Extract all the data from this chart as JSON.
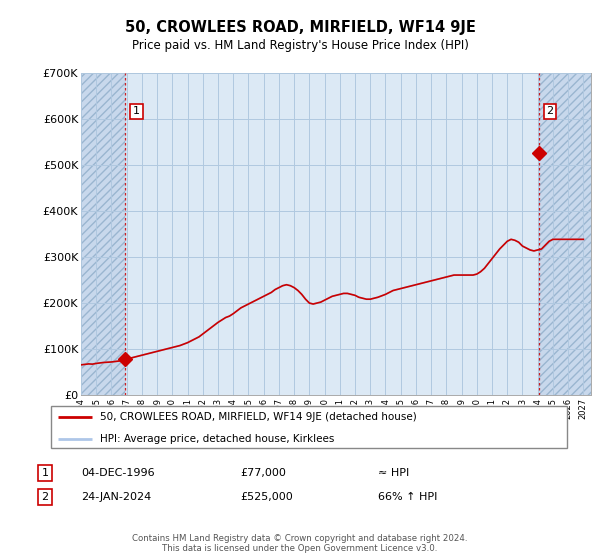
{
  "title": "50, CROWLEES ROAD, MIRFIELD, WF14 9JE",
  "subtitle": "Price paid vs. HM Land Registry's House Price Index (HPI)",
  "ylim": [
    0,
    700000
  ],
  "yticks": [
    0,
    100000,
    200000,
    300000,
    400000,
    500000,
    600000,
    700000
  ],
  "ytick_labels": [
    "£0",
    "£100K",
    "£200K",
    "£300K",
    "£400K",
    "£500K",
    "£600K",
    "£700K"
  ],
  "hpi_color": "#aec6e8",
  "price_color": "#cc0000",
  "plot_bg_color": "#dce9f5",
  "grid_color": "#b0c8e0",
  "hatch_bg_color": "#c8d8ec",
  "legend_line1": "50, CROWLEES ROAD, MIRFIELD, WF14 9JE (detached house)",
  "legend_line2": "HPI: Average price, detached house, Kirklees",
  "annotation1_label": "1",
  "annotation1_date": "04-DEC-1996",
  "annotation1_price": "£77,000",
  "annotation1_hpi": "≈ HPI",
  "annotation2_label": "2",
  "annotation2_date": "24-JAN-2024",
  "annotation2_price": "£525,000",
  "annotation2_hpi": "66% ↑ HPI",
  "footer": "Contains HM Land Registry data © Crown copyright and database right 2024.\nThis data is licensed under the Open Government Licence v3.0.",
  "sale1_year": 1996.92,
  "sale1_price": 77000,
  "sale2_year": 2024.07,
  "sale2_price": 525000,
  "xlim_left": 1994.0,
  "xlim_right": 2027.5,
  "hpi_x": [
    1994.0,
    1994.25,
    1994.5,
    1994.75,
    1995.0,
    1995.25,
    1995.5,
    1995.75,
    1996.0,
    1996.25,
    1996.5,
    1996.75,
    1997.0,
    1997.25,
    1997.5,
    1997.75,
    1998.0,
    1998.25,
    1998.5,
    1998.75,
    1999.0,
    1999.25,
    1999.5,
    1999.75,
    2000.0,
    2000.25,
    2000.5,
    2000.75,
    2001.0,
    2001.25,
    2001.5,
    2001.75,
    2002.0,
    2002.25,
    2002.5,
    2002.75,
    2003.0,
    2003.25,
    2003.5,
    2003.75,
    2004.0,
    2004.25,
    2004.5,
    2004.75,
    2005.0,
    2005.25,
    2005.5,
    2005.75,
    2006.0,
    2006.25,
    2006.5,
    2006.75,
    2007.0,
    2007.25,
    2007.5,
    2007.75,
    2008.0,
    2008.25,
    2008.5,
    2008.75,
    2009.0,
    2009.25,
    2009.5,
    2009.75,
    2010.0,
    2010.25,
    2010.5,
    2010.75,
    2011.0,
    2011.25,
    2011.5,
    2011.75,
    2012.0,
    2012.25,
    2012.5,
    2012.75,
    2013.0,
    2013.25,
    2013.5,
    2013.75,
    2014.0,
    2014.25,
    2014.5,
    2014.75,
    2015.0,
    2015.25,
    2015.5,
    2015.75,
    2016.0,
    2016.25,
    2016.5,
    2016.75,
    2017.0,
    2017.25,
    2017.5,
    2017.75,
    2018.0,
    2018.25,
    2018.5,
    2018.75,
    2019.0,
    2019.25,
    2019.5,
    2019.75,
    2020.0,
    2020.25,
    2020.5,
    2020.75,
    2021.0,
    2021.25,
    2021.5,
    2021.75,
    2022.0,
    2022.25,
    2022.5,
    2022.75,
    2023.0,
    2023.25,
    2023.5,
    2023.75,
    2024.0,
    2024.25,
    2024.5,
    2024.75,
    2025.0,
    2025.25,
    2025.5,
    2025.75,
    2026.0,
    2026.5,
    2027.0
  ],
  "hpi_y": [
    62000,
    63000,
    64000,
    63500,
    65000,
    66000,
    67000,
    67500,
    68000,
    69000,
    70000,
    72000,
    74000,
    76000,
    78000,
    80000,
    82000,
    84000,
    86000,
    88000,
    90000,
    92000,
    94000,
    96000,
    98000,
    100000,
    102000,
    105000,
    108000,
    112000,
    116000,
    120000,
    126000,
    132000,
    138000,
    144000,
    150000,
    155000,
    160000,
    163000,
    168000,
    174000,
    180000,
    184000,
    188000,
    192000,
    196000,
    200000,
    204000,
    208000,
    212000,
    218000,
    222000,
    226000,
    228000,
    226000,
    222000,
    216000,
    208000,
    198000,
    190000,
    188000,
    190000,
    192000,
    196000,
    200000,
    204000,
    206000,
    208000,
    210000,
    210000,
    208000,
    206000,
    202000,
    200000,
    198000,
    198000,
    200000,
    202000,
    205000,
    208000,
    212000,
    216000,
    218000,
    220000,
    222000,
    224000,
    226000,
    228000,
    230000,
    232000,
    234000,
    236000,
    238000,
    240000,
    242000,
    244000,
    246000,
    248000,
    248000,
    248000,
    248000,
    248000,
    248000,
    250000,
    255000,
    262000,
    272000,
    282000,
    292000,
    302000,
    310000,
    318000,
    322000,
    320000,
    316000,
    308000,
    304000,
    300000,
    298000,
    300000,
    302000,
    310000,
    318000,
    322000,
    322000,
    322000,
    322000,
    322000,
    322000,
    322000
  ]
}
